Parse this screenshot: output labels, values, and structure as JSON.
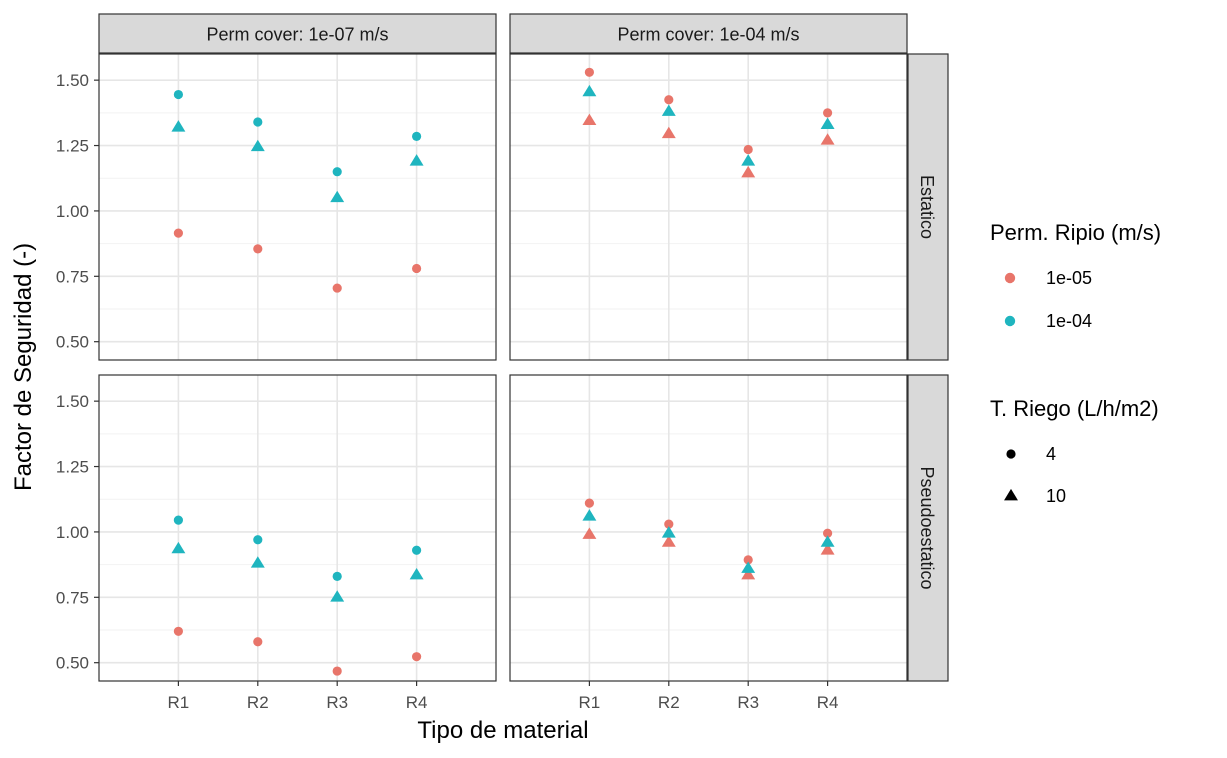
{
  "chart_data": {
    "type": "scatter",
    "xlabel": "Tipo de material",
    "ylabel": "Factor de Seguridad (-)",
    "categories": [
      "R1",
      "R2",
      "R3",
      "R4"
    ],
    "ylim": [
      0.43,
      1.6
    ],
    "yticks": [
      0.5,
      0.75,
      1.0,
      1.25,
      1.5
    ],
    "ytick_labels": [
      "0.50",
      "0.75",
      "1.00",
      "1.25",
      "1.50"
    ],
    "grid": true,
    "facet_cols": [
      "Perm cover: 1e-07 m/s",
      "Perm cover: 1e-04 m/s"
    ],
    "facet_rows": [
      "Estatico",
      "Pseudoestatico"
    ],
    "colors": {
      "1e-05": "#e8756a",
      "1e-04": "#1fb5bf"
    },
    "legends": [
      {
        "title": "Perm. Ripio (m/s)",
        "kind": "color",
        "entries": [
          "1e-05",
          "1e-04"
        ]
      },
      {
        "title": "T. Riego (L/h/m2)",
        "kind": "shape",
        "entries": [
          "4",
          "10"
        ]
      }
    ],
    "panels": [
      {
        "col": 0,
        "row": 0,
        "series": [
          {
            "perm_ripio": "1e-05",
            "riego": "4",
            "values": [
              0.915,
              0.855,
              0.705,
              0.78
            ]
          },
          {
            "perm_ripio": "1e-04",
            "riego": "4",
            "values": [
              1.445,
              1.34,
              1.15,
              1.285
            ]
          },
          {
            "perm_ripio": "1e-04",
            "riego": "10",
            "values": [
              1.32,
              1.245,
              1.05,
              1.19
            ]
          }
        ]
      },
      {
        "col": 1,
        "row": 0,
        "series": [
          {
            "perm_ripio": "1e-05",
            "riego": "4",
            "values": [
              1.53,
              1.425,
              1.235,
              1.375
            ]
          },
          {
            "perm_ripio": "1e-05",
            "riego": "10",
            "values": [
              1.345,
              1.295,
              1.145,
              1.27
            ]
          },
          {
            "perm_ripio": "1e-04",
            "riego": "10",
            "values": [
              1.455,
              1.38,
              1.19,
              1.33
            ]
          }
        ]
      },
      {
        "col": 0,
        "row": 1,
        "series": [
          {
            "perm_ripio": "1e-05",
            "riego": "4",
            "values": [
              0.62,
              0.58,
              0.468,
              0.523
            ]
          },
          {
            "perm_ripio": "1e-04",
            "riego": "4",
            "values": [
              1.045,
              0.97,
              0.83,
              0.93
            ]
          },
          {
            "perm_ripio": "1e-04",
            "riego": "10",
            "values": [
              0.935,
              0.88,
              0.75,
              0.835
            ]
          }
        ]
      },
      {
        "col": 1,
        "row": 1,
        "series": [
          {
            "perm_ripio": "1e-05",
            "riego": "4",
            "values": [
              1.11,
              1.03,
              0.893,
              0.995
            ]
          },
          {
            "perm_ripio": "1e-05",
            "riego": "10",
            "values": [
              0.99,
              0.96,
              0.835,
              0.93
            ]
          },
          {
            "perm_ripio": "1e-04",
            "riego": "10",
            "values": [
              1.06,
              0.995,
              0.86,
              0.96
            ]
          }
        ]
      }
    ]
  }
}
